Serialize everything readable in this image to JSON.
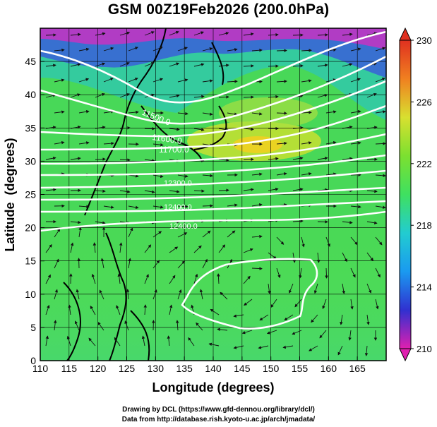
{
  "title": "GSM 00Z19Feb2026 (200.0hPa)",
  "xlabel": "Longitude (degrees)",
  "ylabel": "Latitude  (degrees)",
  "x_ticks": [
    "110",
    "115",
    "120",
    "125",
    "130",
    "135",
    "140",
    "145",
    "150",
    "155",
    "160",
    "165"
  ],
  "y_ticks": [
    "0",
    "5",
    "10",
    "15",
    "20",
    "25",
    "30",
    "35",
    "40",
    "45"
  ],
  "colorbar_ticks": [
    "210",
    "214",
    "218",
    "222",
    "226",
    "230"
  ],
  "contour_labels": [
    "11500.0",
    "11600.0",
    "11700.0",
    "12300.0",
    "12400.0",
    "12400.0"
  ],
  "credit_line1": "Drawing by DCL (https://www.gfd-dennou.org/library/dcl/)",
  "credit_line2": "Data from http://database.rish.kyoto-u.ac.jp/arch/jmadata/",
  "chart_data": {
    "type": "heatmap",
    "xlim": [
      110,
      170
    ],
    "ylim": [
      0,
      50
    ],
    "colorbar_range": [
      210,
      230
    ],
    "colorbar_colors": [
      "#e020b0",
      "#3030d0",
      "#1a9af0",
      "#22ccd0",
      "#3fe060",
      "#7ce030",
      "#d8e030",
      "#f08020",
      "#e03020"
    ],
    "grid": true
  }
}
